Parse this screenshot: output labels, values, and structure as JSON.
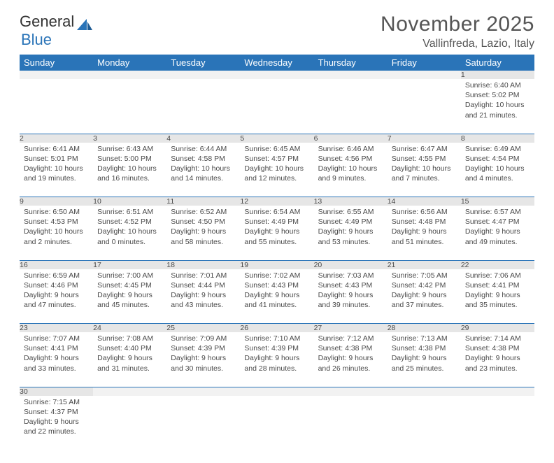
{
  "brand": {
    "part1": "General",
    "part2": "Blue"
  },
  "title": "November 2025",
  "location": "Vallinfreda, Lazio, Italy",
  "colors": {
    "header_bg": "#2a74b8",
    "header_text": "#ffffff",
    "daynum_bg": "#e6e6e6",
    "cell_border": "#2a74b8",
    "text": "#4a4a4a"
  },
  "weekdays": [
    "Sunday",
    "Monday",
    "Tuesday",
    "Wednesday",
    "Thursday",
    "Friday",
    "Saturday"
  ],
  "layout": {
    "weeks": 6,
    "first_weekday_index": 6,
    "days_in_month": 30
  },
  "days": {
    "1": {
      "sunrise": "6:40 AM",
      "sunset": "5:02 PM",
      "daylight": "10 hours and 21 minutes."
    },
    "2": {
      "sunrise": "6:41 AM",
      "sunset": "5:01 PM",
      "daylight": "10 hours and 19 minutes."
    },
    "3": {
      "sunrise": "6:43 AM",
      "sunset": "5:00 PM",
      "daylight": "10 hours and 16 minutes."
    },
    "4": {
      "sunrise": "6:44 AM",
      "sunset": "4:58 PM",
      "daylight": "10 hours and 14 minutes."
    },
    "5": {
      "sunrise": "6:45 AM",
      "sunset": "4:57 PM",
      "daylight": "10 hours and 12 minutes."
    },
    "6": {
      "sunrise": "6:46 AM",
      "sunset": "4:56 PM",
      "daylight": "10 hours and 9 minutes."
    },
    "7": {
      "sunrise": "6:47 AM",
      "sunset": "4:55 PM",
      "daylight": "10 hours and 7 minutes."
    },
    "8": {
      "sunrise": "6:49 AM",
      "sunset": "4:54 PM",
      "daylight": "10 hours and 4 minutes."
    },
    "9": {
      "sunrise": "6:50 AM",
      "sunset": "4:53 PM",
      "daylight": "10 hours and 2 minutes."
    },
    "10": {
      "sunrise": "6:51 AM",
      "sunset": "4:52 PM",
      "daylight": "10 hours and 0 minutes."
    },
    "11": {
      "sunrise": "6:52 AM",
      "sunset": "4:50 PM",
      "daylight": "9 hours and 58 minutes."
    },
    "12": {
      "sunrise": "6:54 AM",
      "sunset": "4:49 PM",
      "daylight": "9 hours and 55 minutes."
    },
    "13": {
      "sunrise": "6:55 AM",
      "sunset": "4:49 PM",
      "daylight": "9 hours and 53 minutes."
    },
    "14": {
      "sunrise": "6:56 AM",
      "sunset": "4:48 PM",
      "daylight": "9 hours and 51 minutes."
    },
    "15": {
      "sunrise": "6:57 AM",
      "sunset": "4:47 PM",
      "daylight": "9 hours and 49 minutes."
    },
    "16": {
      "sunrise": "6:59 AM",
      "sunset": "4:46 PM",
      "daylight": "9 hours and 47 minutes."
    },
    "17": {
      "sunrise": "7:00 AM",
      "sunset": "4:45 PM",
      "daylight": "9 hours and 45 minutes."
    },
    "18": {
      "sunrise": "7:01 AM",
      "sunset": "4:44 PM",
      "daylight": "9 hours and 43 minutes."
    },
    "19": {
      "sunrise": "7:02 AM",
      "sunset": "4:43 PM",
      "daylight": "9 hours and 41 minutes."
    },
    "20": {
      "sunrise": "7:03 AM",
      "sunset": "4:43 PM",
      "daylight": "9 hours and 39 minutes."
    },
    "21": {
      "sunrise": "7:05 AM",
      "sunset": "4:42 PM",
      "daylight": "9 hours and 37 minutes."
    },
    "22": {
      "sunrise": "7:06 AM",
      "sunset": "4:41 PM",
      "daylight": "9 hours and 35 minutes."
    },
    "23": {
      "sunrise": "7:07 AM",
      "sunset": "4:41 PM",
      "daylight": "9 hours and 33 minutes."
    },
    "24": {
      "sunrise": "7:08 AM",
      "sunset": "4:40 PM",
      "daylight": "9 hours and 31 minutes."
    },
    "25": {
      "sunrise": "7:09 AM",
      "sunset": "4:39 PM",
      "daylight": "9 hours and 30 minutes."
    },
    "26": {
      "sunrise": "7:10 AM",
      "sunset": "4:39 PM",
      "daylight": "9 hours and 28 minutes."
    },
    "27": {
      "sunrise": "7:12 AM",
      "sunset": "4:38 PM",
      "daylight": "9 hours and 26 minutes."
    },
    "28": {
      "sunrise": "7:13 AM",
      "sunset": "4:38 PM",
      "daylight": "9 hours and 25 minutes."
    },
    "29": {
      "sunrise": "7:14 AM",
      "sunset": "4:38 PM",
      "daylight": "9 hours and 23 minutes."
    },
    "30": {
      "sunrise": "7:15 AM",
      "sunset": "4:37 PM",
      "daylight": "9 hours and 22 minutes."
    }
  },
  "labels": {
    "sunrise_prefix": "Sunrise: ",
    "sunset_prefix": "Sunset: ",
    "daylight_prefix": "Daylight: "
  }
}
